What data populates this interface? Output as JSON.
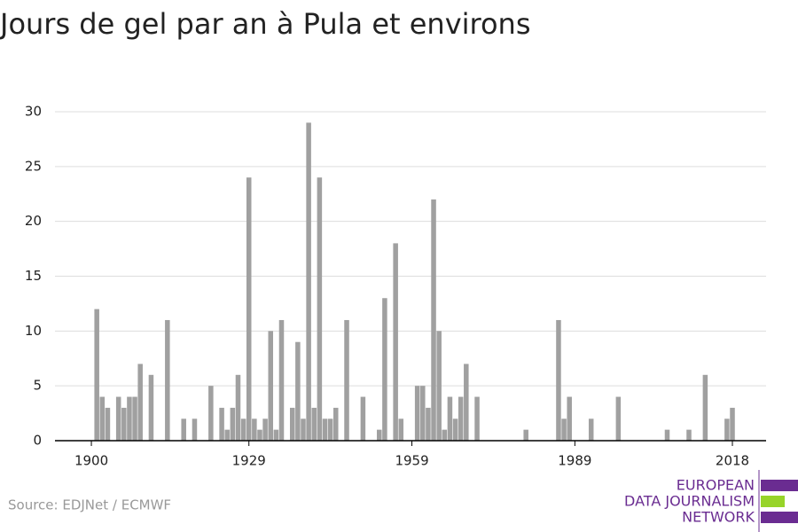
{
  "chart_data": {
    "type": "bar",
    "title": "Jours de gel par an à Pula et environs",
    "source": "Source: EDJNet / ECMWF",
    "logo": [
      "EUROPEAN",
      "DATA JOURNALISM",
      "NETWORK"
    ],
    "color": "#a0a0a0",
    "grid": true,
    "x": [
      1900,
      1901,
      1902,
      1903,
      1904,
      1905,
      1906,
      1907,
      1908,
      1909,
      1910,
      1911,
      1912,
      1913,
      1914,
      1915,
      1916,
      1917,
      1918,
      1919,
      1920,
      1921,
      1922,
      1923,
      1924,
      1925,
      1926,
      1927,
      1928,
      1929,
      1930,
      1931,
      1932,
      1933,
      1934,
      1935,
      1936,
      1937,
      1938,
      1939,
      1940,
      1941,
      1942,
      1943,
      1944,
      1945,
      1946,
      1947,
      1948,
      1949,
      1950,
      1951,
      1952,
      1953,
      1954,
      1955,
      1956,
      1957,
      1958,
      1959,
      1960,
      1961,
      1962,
      1963,
      1964,
      1965,
      1966,
      1967,
      1968,
      1969,
      1970,
      1971,
      1972,
      1973,
      1974,
      1975,
      1976,
      1977,
      1978,
      1979,
      1980,
      1981,
      1982,
      1983,
      1984,
      1985,
      1986,
      1987,
      1988,
      1989,
      1990,
      1991,
      1992,
      1993,
      1994,
      1995,
      1996,
      1997,
      1998,
      1999,
      2000,
      2001,
      2002,
      2003,
      2004,
      2005,
      2006,
      2007,
      2008,
      2009,
      2010,
      2011,
      2012,
      2013,
      2014,
      2015,
      2016,
      2017,
      2018
    ],
    "values": [
      0,
      12,
      4,
      3,
      0,
      4,
      3,
      4,
      4,
      7,
      0,
      6,
      0,
      0,
      11,
      0,
      0,
      2,
      0,
      2,
      0,
      0,
      5,
      0,
      3,
      1,
      3,
      6,
      2,
      24,
      2,
      1,
      2,
      10,
      1,
      11,
      0,
      3,
      9,
      2,
      29,
      3,
      24,
      2,
      2,
      3,
      0,
      11,
      0,
      0,
      4,
      0,
      0,
      1,
      13,
      0,
      18,
      2,
      0,
      0,
      5,
      5,
      3,
      22,
      10,
      1,
      4,
      2,
      4,
      7,
      0,
      4,
      0,
      0,
      0,
      0,
      0,
      0,
      0,
      0,
      1,
      0,
      0,
      0,
      0,
      0,
      11,
      2,
      4,
      0,
      0,
      0,
      2,
      0,
      0,
      0,
      0,
      4,
      0,
      0,
      0,
      0,
      0,
      0,
      0,
      0,
      1,
      0,
      0,
      0,
      1,
      0,
      0,
      6,
      0,
      0,
      0,
      2,
      3
    ],
    "xlim": [
      1893.3,
      2024.2
    ],
    "xticks": [
      1900,
      1929,
      1959,
      1989,
      2018
    ],
    "ylim": [
      0,
      30
    ],
    "yticks": [
      0,
      5,
      10,
      15,
      20,
      25,
      30
    ]
  }
}
